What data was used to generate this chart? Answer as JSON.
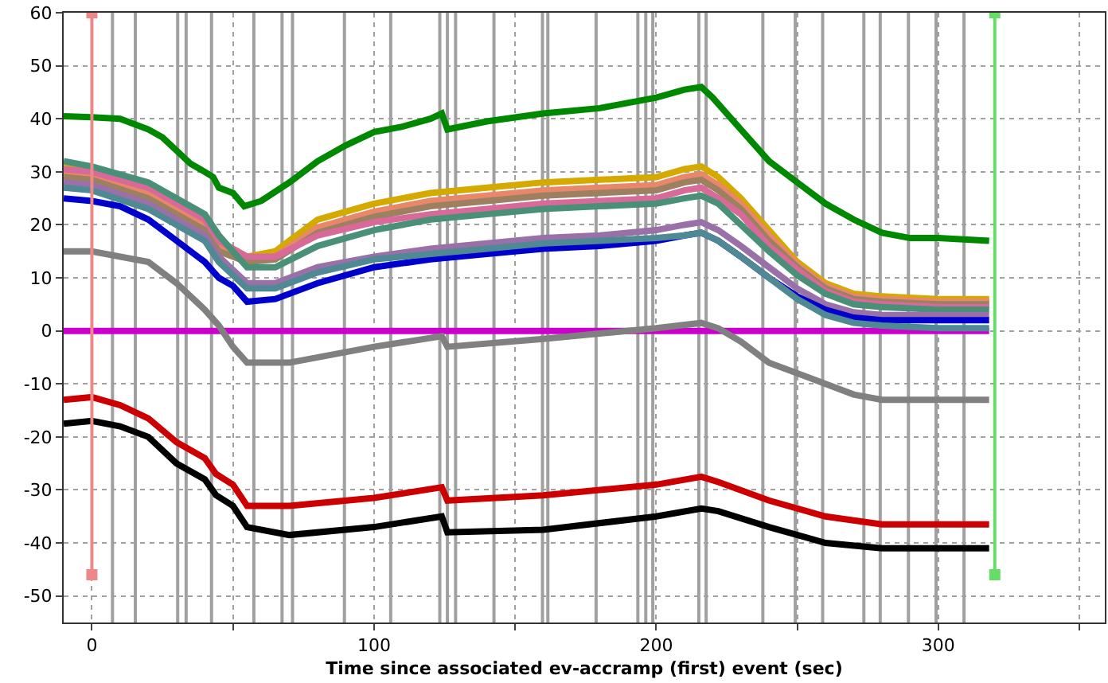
{
  "chart_data": {
    "type": "line",
    "xlabel": "Time since associated ev-accramp (first) event (sec)",
    "xlim": [
      -10,
      359
    ],
    "ylim": [
      -55,
      60
    ],
    "xticks": [
      0,
      {
        "value": 50,
        "label": null
      },
      100,
      {
        "value": 150,
        "label": null
      },
      200,
      {
        "value": 250,
        "label": null
      },
      300,
      {
        "value": 350,
        "label": null
      }
    ],
    "yticks": [
      -50,
      -40,
      -30,
      -20,
      -10,
      0,
      10,
      20,
      30,
      40,
      50,
      60
    ],
    "grid": true,
    "marker": "none",
    "line_style": "solid",
    "ref_lines": [
      {
        "axis": "x",
        "value": 7.3,
        "color": "#a0a0a0"
      },
      {
        "axis": "x",
        "value": 15.4,
        "color": "#a0a0a0"
      },
      {
        "axis": "x",
        "value": 30.4,
        "color": "#a0a0a0"
      },
      {
        "axis": "x",
        "value": 33.4,
        "color": "#a0a0a0"
      },
      {
        "axis": "x",
        "value": 42.4,
        "color": "#a0a0a0"
      },
      {
        "axis": "x",
        "value": 57.4,
        "color": "#a0a0a0"
      },
      {
        "axis": "x",
        "value": 67.4,
        "color": "#a0a0a0"
      },
      {
        "axis": "x",
        "value": 71.1,
        "color": "#a0a0a0"
      },
      {
        "axis": "x",
        "value": 89.5,
        "color": "#a0a0a0"
      },
      {
        "axis": "x",
        "value": 105.9,
        "color": "#a0a0a0"
      },
      {
        "axis": "x",
        "value": 123.3,
        "color": "#a0a0a0"
      },
      {
        "axis": "x",
        "value": 126,
        "color": "#a0a0a0"
      },
      {
        "axis": "x",
        "value": 128.9,
        "color": "#a0a0a0"
      },
      {
        "axis": "x",
        "value": 142.5,
        "color": "#a0a0a0"
      },
      {
        "axis": "x",
        "value": 159.7,
        "color": "#a0a0a0"
      },
      {
        "axis": "x",
        "value": 161.6,
        "color": "#a0a0a0"
      },
      {
        "axis": "x",
        "value": 178.7,
        "color": "#a0a0a0"
      },
      {
        "axis": "x",
        "value": 193.5,
        "color": "#a0a0a0"
      },
      {
        "axis": "x",
        "value": 196.3,
        "color": "#a0a0a0"
      },
      {
        "axis": "x",
        "value": 198.8,
        "color": "#a0a0a0"
      },
      {
        "axis": "x",
        "value": 215.1,
        "color": "#a0a0a0"
      },
      {
        "axis": "x",
        "value": 217.7,
        "color": "#a0a0a0"
      },
      {
        "axis": "x",
        "value": 237.8,
        "color": "#a0a0a0"
      },
      {
        "axis": "x",
        "value": 249.3,
        "color": "#a0a0a0"
      },
      {
        "axis": "x",
        "value": 259,
        "color": "#a0a0a0"
      },
      {
        "axis": "x",
        "value": 273.6,
        "color": "#a0a0a0"
      },
      {
        "axis": "x",
        "value": 279.4,
        "color": "#a0a0a0"
      },
      {
        "axis": "x",
        "value": 289.4,
        "color": "#a0a0a0"
      },
      {
        "axis": "x",
        "value": 299.2,
        "color": "#a0a0a0"
      },
      {
        "axis": "x",
        "value": 309.1,
        "color": "#a0a0a0"
      }
    ],
    "series": [
      {
        "color": "#cc00cc",
        "x": [
          -10,
          318
        ],
        "values": [
          0,
          0
        ]
      },
      {
        "color": "#d4aa00",
        "x": [
          -10,
          0,
          20,
          40,
          45,
          55,
          65,
          80,
          100,
          120,
          140,
          160,
          180,
          200,
          210,
          216,
          222,
          230,
          240,
          250,
          260,
          270,
          280,
          300,
          318
        ],
        "values": [
          31,
          30.5,
          27,
          21,
          17,
          14,
          15,
          21,
          24,
          26,
          27,
          28,
          28.5,
          29,
          30.5,
          31,
          29,
          25,
          19,
          13,
          9,
          7,
          6.5,
          6,
          6
        ]
      },
      {
        "color": "#e8876a",
        "x": [
          -10,
          0,
          20,
          40,
          45,
          55,
          65,
          80,
          100,
          120,
          140,
          160,
          180,
          200,
          210,
          216,
          222,
          230,
          240,
          250,
          260,
          270,
          280,
          300,
          318
        ],
        "values": [
          30,
          29.5,
          26,
          20,
          16,
          13.5,
          14,
          19.5,
          22.5,
          24.5,
          25.5,
          26.5,
          27,
          27.5,
          29,
          29.5,
          27.5,
          24,
          18,
          12.5,
          8.5,
          6.5,
          6,
          5.5,
          5.5
        ]
      },
      {
        "color": "#9c8060",
        "x": [
          -10,
          0,
          20,
          40,
          45,
          55,
          65,
          80,
          100,
          120,
          140,
          160,
          180,
          200,
          210,
          216,
          222,
          230,
          240,
          250,
          260,
          270,
          280,
          300,
          318
        ],
        "values": [
          29,
          28.5,
          25,
          19,
          15,
          13,
          13.5,
          18.5,
          21.5,
          23.5,
          24.5,
          25.5,
          26,
          26.5,
          28,
          28.5,
          26.5,
          23,
          17,
          12,
          8,
          6,
          5.5,
          5,
          5
        ]
      },
      {
        "color": "#d86a9a",
        "x": [
          -10,
          0,
          20,
          40,
          45,
          55,
          65,
          80,
          100,
          120,
          140,
          160,
          180,
          200,
          210,
          216,
          222,
          230,
          240,
          250,
          260,
          270,
          280,
          300,
          318
        ],
        "values": [
          30.5,
          30,
          27,
          21,
          17,
          14,
          14,
          18,
          20.5,
          22,
          23,
          24,
          24.5,
          25,
          26.5,
          27,
          25,
          22,
          16,
          11.5,
          7.5,
          5.5,
          5,
          4.5,
          4.5
        ]
      },
      {
        "color": "#4a9078",
        "x": [
          -10,
          0,
          20,
          40,
          45,
          55,
          65,
          80,
          100,
          120,
          140,
          160,
          180,
          200,
          210,
          216,
          222,
          230,
          240,
          250,
          260,
          270,
          280,
          300,
          318
        ],
        "values": [
          32,
          31,
          28,
          22,
          18,
          12,
          12,
          16,
          19,
          21,
          22,
          23,
          23.5,
          24,
          25,
          25.5,
          24,
          20,
          15,
          10.5,
          7,
          5,
          4.5,
          4,
          4
        ]
      },
      {
        "color": "#9a70a8",
        "x": [
          -10,
          0,
          20,
          40,
          45,
          55,
          65,
          80,
          100,
          120,
          140,
          160,
          180,
          200,
          210,
          216,
          222,
          230,
          240,
          250,
          260,
          270,
          280,
          300,
          318
        ],
        "values": [
          28,
          27.5,
          24,
          18,
          14,
          9,
          9,
          12,
          14,
          15.5,
          16.5,
          17.5,
          18,
          19,
          20,
          20.5,
          19,
          16,
          12,
          8,
          5,
          3.5,
          3,
          3,
          3
        ]
      },
      {
        "color": "#0000cc",
        "x": [
          -10,
          0,
          10,
          20,
          30,
          40,
          45,
          50,
          55,
          65,
          80,
          100,
          120,
          140,
          160,
          180,
          200,
          210,
          216,
          222,
          230,
          240,
          250,
          260,
          270,
          280,
          300,
          318
        ],
        "values": [
          25,
          24.5,
          23.5,
          21,
          17,
          13,
          10,
          8.5,
          5.5,
          6,
          9,
          12,
          13.5,
          14.5,
          15.5,
          16,
          17,
          18,
          18.5,
          17,
          14,
          10,
          6.5,
          4,
          2.5,
          2,
          2,
          2
        ]
      },
      {
        "color": "#4f8a94",
        "x": [
          -10,
          0,
          20,
          40,
          45,
          55,
          65,
          80,
          100,
          120,
          140,
          160,
          180,
          200,
          210,
          216,
          222,
          230,
          240,
          250,
          260,
          270,
          280,
          300,
          318
        ],
        "values": [
          27,
          26.5,
          23,
          17,
          13,
          8,
          8,
          11,
          13.5,
          14.5,
          15.5,
          16.5,
          17,
          17.5,
          18,
          18.5,
          17,
          14,
          10,
          6,
          3,
          1.5,
          1,
          0.5,
          0.5
        ]
      },
      {
        "color": "#808080",
        "x": [
          -10,
          0,
          20,
          30,
          40,
          45,
          50,
          55,
          70,
          100,
          124,
          126,
          160,
          200,
          216,
          222,
          230,
          240,
          260,
          270,
          280,
          300,
          318
        ],
        "values": [
          15,
          15,
          13,
          9,
          4,
          1,
          -3,
          -6,
          -6,
          -3,
          -1,
          -3,
          -1.5,
          0.5,
          1.5,
          0.5,
          -2,
          -6,
          -10,
          -12,
          -13,
          -13,
          -13
        ]
      },
      {
        "color": "#008800",
        "x": [
          -10,
          0,
          10,
          20,
          25,
          30,
          35,
          40,
          43,
          45,
          50,
          54,
          60,
          70,
          80,
          90,
          100,
          110,
          120,
          124,
          126,
          140,
          160,
          180,
          200,
          210,
          216,
          220,
          230,
          240,
          250,
          260,
          270,
          280,
          290,
          300,
          318
        ],
        "values": [
          40.5,
          40.3,
          40,
          38,
          36.5,
          34,
          31.5,
          30,
          29,
          27,
          26,
          23.5,
          24.5,
          28,
          32,
          35,
          37.5,
          38.5,
          40,
          41,
          38,
          39.5,
          41,
          42,
          44,
          45.5,
          46,
          44,
          38,
          32,
          28,
          24,
          21,
          18.5,
          17.5,
          17.5,
          17
        ]
      },
      {
        "color": "#cc0000",
        "x": [
          -10,
          0,
          10,
          20,
          30,
          40,
          44,
          50,
          55,
          70,
          100,
          124,
          126,
          160,
          200,
          216,
          222,
          240,
          260,
          280,
          318
        ],
        "values": [
          -13,
          -12.5,
          -14,
          -16.5,
          -21,
          -24,
          -27,
          -29,
          -33,
          -33,
          -31.5,
          -29.5,
          -32,
          -31,
          -29,
          -27.5,
          -28.5,
          -32,
          -35,
          -36.5,
          -36.5
        ]
      },
      {
        "color": "#000000",
        "x": [
          -10,
          0,
          10,
          20,
          30,
          40,
          44,
          50,
          55,
          70,
          100,
          124,
          126,
          160,
          200,
          216,
          222,
          240,
          260,
          280,
          318
        ],
        "values": [
          -17.5,
          -17,
          -18,
          -20,
          -25,
          -28,
          -31,
          -33,
          -37,
          -38.5,
          -37,
          -35,
          -38,
          -37.5,
          -35,
          -33.5,
          -34,
          -37,
          -40,
          -41,
          -41
        ]
      },
      {
        "color": "#ee8888",
        "marker": "square",
        "x": [
          0,
          0
        ],
        "values": [
          60,
          -46
        ]
      },
      {
        "color": "#66dd66",
        "marker": "square",
        "x": [
          320,
          320
        ],
        "values": [
          60,
          -46
        ]
      }
    ]
  }
}
